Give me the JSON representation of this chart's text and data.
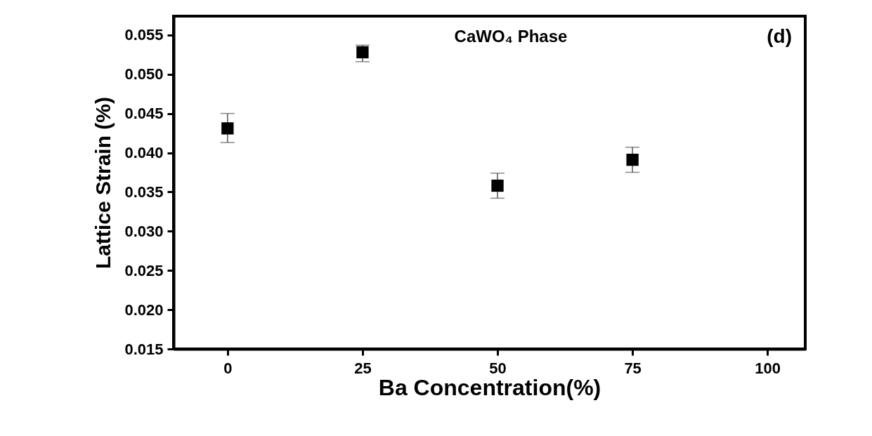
{
  "chart_data": {
    "type": "scatter",
    "xlabel": "Ba Concentration(%)",
    "ylabel": "Lattice Strain (%)",
    "annotations": [
      "CaWO₄ Phase",
      "(d)"
    ],
    "x": [
      0,
      25,
      50,
      75
    ],
    "series": [
      {
        "color": "#000000",
        "values": [
          0.0431,
          0.0528,
          0.0358,
          0.0391
        ],
        "errors": [
          [
            0.0413,
            0.045
          ],
          [
            0.0516,
            0.0537
          ],
          [
            0.0342,
            0.0374
          ],
          [
            0.0375,
            0.0407
          ]
        ]
      }
    ],
    "xlim": [
      -10,
      107
    ],
    "xticks": [
      0,
      25,
      50,
      75,
      100
    ],
    "ylim": [
      0.015,
      0.0574
    ],
    "yticks": [
      {
        "value": 0.015,
        "label": "0.015"
      },
      {
        "value": 0.02,
        "label": "0.020"
      },
      {
        "value": 0.025,
        "label": "0.025"
      },
      {
        "value": 0.03,
        "label": "0.030"
      },
      {
        "value": 0.035,
        "label": "0.035"
      },
      {
        "value": 0.04,
        "label": "0.040"
      },
      {
        "value": 0.045,
        "label": "0.045"
      },
      {
        "value": 0.05,
        "label": "0.050"
      },
      {
        "value": 0.055,
        "label": "0.055"
      }
    ],
    "marker": "square",
    "grid": false
  }
}
